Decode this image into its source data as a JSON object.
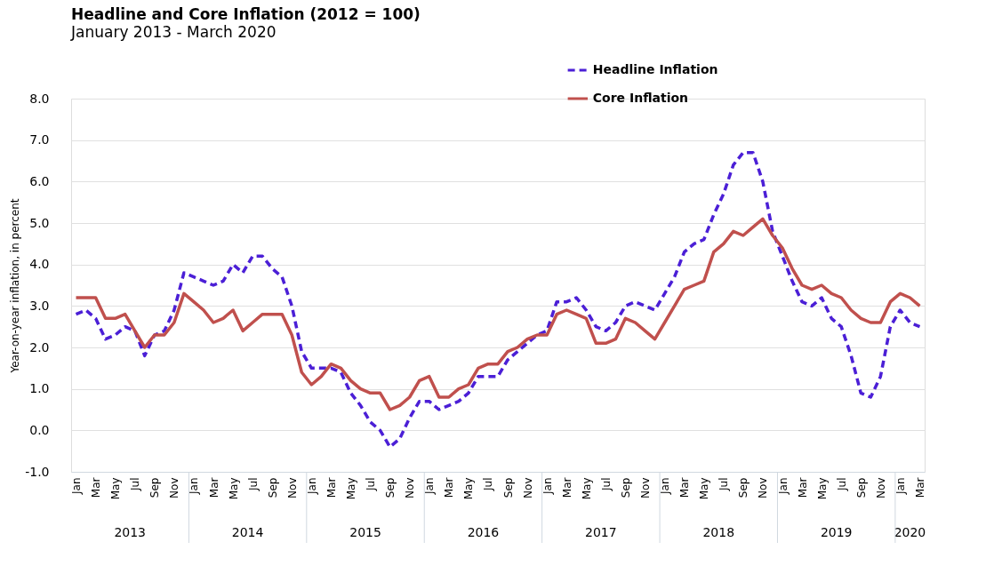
{
  "chart_data": {
    "type": "line",
    "title": "Headline and Core Inflation  (2012 = 100)",
    "subtitle": "January 2013 - March 2020",
    "ylabel": "Year-on-year inflation, in percent",
    "categories": [
      "Jan",
      null,
      "Mar",
      null,
      "May",
      null,
      "Jul",
      null,
      "Sep",
      null,
      "Nov",
      null,
      "Jan",
      null,
      "Mar",
      null,
      "May",
      null,
      "Jul",
      null,
      "Sep",
      null,
      "Nov",
      null,
      "Jan",
      null,
      "Mar",
      null,
      "May",
      null,
      "Jul",
      null,
      "Sep",
      null,
      "Nov",
      null,
      "Jan",
      null,
      "Mar",
      null,
      "May",
      null,
      "Jul",
      null,
      "Sep",
      null,
      "Nov",
      null,
      "Jan",
      null,
      "Mar",
      null,
      "May",
      null,
      "Jul",
      null,
      "Sep",
      null,
      "Nov",
      null,
      "Jan",
      null,
      "Mar",
      null,
      "May",
      null,
      "Jul",
      null,
      "Sep",
      null,
      "Nov",
      null,
      "Jan",
      null,
      "Mar",
      null,
      "May",
      null,
      "Jul",
      null,
      "Sep",
      null,
      "Nov",
      null,
      "Jan",
      null,
      "Mar"
    ],
    "series": [
      {
        "name": "Headline Inflation",
        "color": "#4b1fd6",
        "line_style": "dashed",
        "values": [
          2.8,
          2.9,
          2.7,
          2.2,
          2.3,
          2.5,
          2.4,
          1.8,
          2.3,
          2.4,
          2.9,
          3.8,
          3.7,
          3.6,
          3.5,
          3.6,
          4.0,
          3.8,
          4.2,
          4.2,
          3.9,
          3.7,
          3.0,
          1.9,
          1.5,
          1.5,
          1.5,
          1.4,
          0.9,
          0.6,
          0.2,
          0.0,
          -0.4,
          -0.2,
          0.3,
          0.7,
          0.7,
          0.5,
          0.6,
          0.7,
          0.9,
          1.3,
          1.3,
          1.3,
          1.7,
          1.9,
          2.1,
          2.3,
          2.4,
          3.1,
          3.1,
          3.2,
          2.9,
          2.5,
          2.4,
          2.6,
          3.0,
          3.1,
          3.0,
          2.9,
          3.3,
          3.7,
          4.3,
          4.5,
          4.6,
          5.2,
          5.7,
          6.4,
          6.7,
          6.7,
          6.0,
          4.8,
          4.2,
          3.6,
          3.1,
          3.0,
          3.2,
          2.7,
          2.5,
          1.8,
          0.9,
          0.8,
          1.3,
          2.5,
          2.9,
          2.6,
          2.5
        ]
      },
      {
        "name": "Core Inflation",
        "color": "#c0504d",
        "line_style": "solid",
        "values": [
          3.2,
          3.2,
          3.2,
          2.7,
          2.7,
          2.8,
          2.4,
          2.0,
          2.3,
          2.3,
          2.6,
          3.3,
          3.1,
          2.9,
          2.6,
          2.7,
          2.9,
          2.4,
          2.6,
          2.8,
          2.8,
          2.8,
          2.3,
          1.4,
          1.1,
          1.3,
          1.6,
          1.5,
          1.2,
          1.0,
          0.9,
          0.9,
          0.5,
          0.6,
          0.8,
          1.2,
          1.3,
          0.8,
          0.8,
          1.0,
          1.1,
          1.5,
          1.6,
          1.6,
          1.9,
          2.0,
          2.2,
          2.3,
          2.3,
          2.8,
          2.9,
          2.8,
          2.7,
          2.1,
          2.1,
          2.2,
          2.7,
          2.6,
          2.4,
          2.2,
          2.6,
          3.0,
          3.4,
          3.5,
          3.6,
          4.3,
          4.5,
          4.8,
          4.7,
          4.9,
          5.1,
          4.7,
          4.4,
          3.9,
          3.5,
          3.4,
          3.5,
          3.3,
          3.2,
          2.9,
          2.7,
          2.6,
          2.6,
          3.1,
          3.3,
          3.2,
          3.0
        ]
      }
    ],
    "annotations": [
      "2013",
      "2014",
      "2015",
      "2016",
      "2017",
      "2018",
      "2019",
      "2020"
    ],
    "ylim": [
      -1,
      8
    ],
    "yticks": [
      {
        "value": -1,
        "label": "-1.0"
      },
      {
        "value": 0,
        "label": "0.0"
      },
      {
        "value": 1,
        "label": "1.0"
      },
      {
        "value": 2,
        "label": "2.0"
      },
      {
        "value": 3,
        "label": "3.0"
      },
      {
        "value": 4,
        "label": "4.0"
      },
      {
        "value": 5,
        "label": "5.0"
      },
      {
        "value": 6,
        "label": "6.0"
      },
      {
        "value": 7,
        "label": "7.0"
      },
      {
        "value": 8,
        "label": "8.0"
      }
    ],
    "grid": "y",
    "legend": "top",
    "marker": "none"
  }
}
